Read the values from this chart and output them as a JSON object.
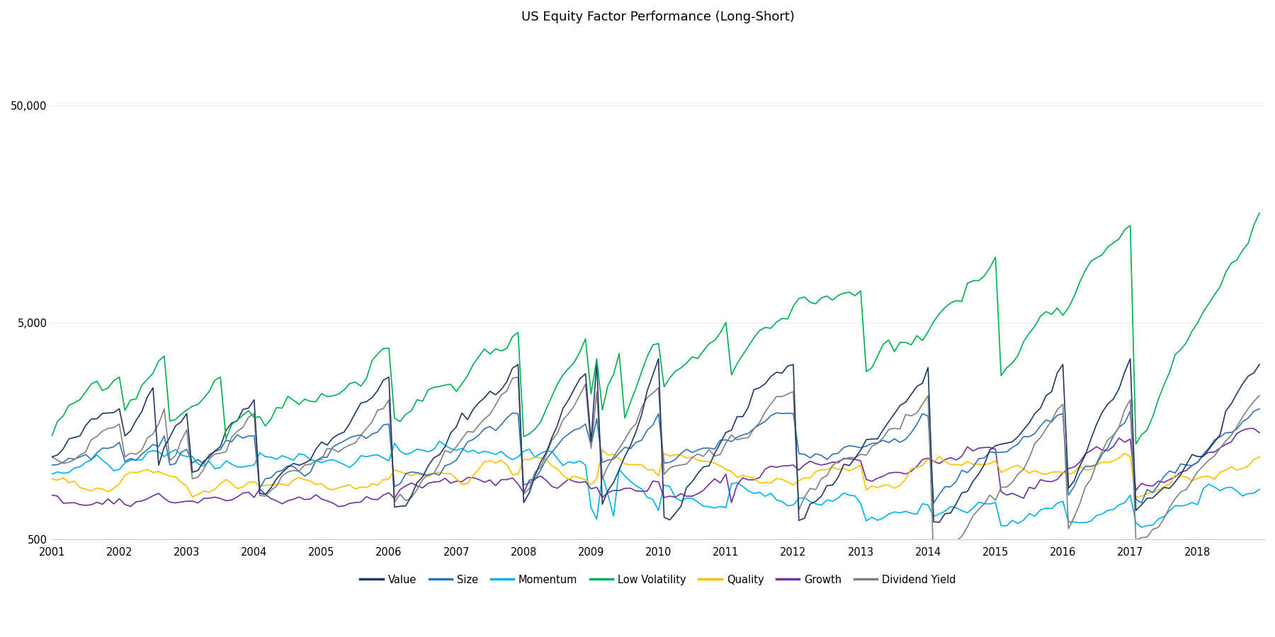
{
  "title": "US Equity Factor Performance (Long-Short)",
  "title_fontsize": 13,
  "background_color": "#ffffff",
  "series_colors": {
    "Value": "#1f3864",
    "Size": "#2e74b5",
    "Momentum": "#00b0f0",
    "Low Volatility": "#00b050",
    "Quality": "#ffc000",
    "Growth": "#7030a0",
    "Dividend Yield": "#808080"
  },
  "linewidth": 1.2,
  "xmin": 2001,
  "xmax": 2018.99,
  "xticks": [
    2001,
    2002,
    2003,
    2004,
    2005,
    2006,
    2007,
    2008,
    2009,
    2010,
    2011,
    2012,
    2013,
    2014,
    2015,
    2016,
    2017,
    2018
  ],
  "ymin": 500,
  "ymax": 100000,
  "yticks": [
    500,
    5000,
    50000
  ],
  "ytick_labels": [
    "500",
    "5,000",
    "50,000"
  ],
  "n_points": 216
}
